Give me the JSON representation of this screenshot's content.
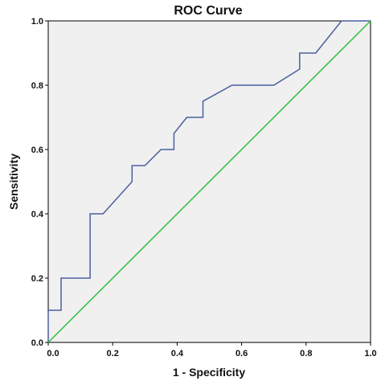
{
  "chart_data": {
    "type": "line",
    "title": "ROC Curve",
    "xlabel": "1 - Specificity",
    "ylabel": "Sensitivity",
    "xlim": [
      0,
      1
    ],
    "ylim": [
      0,
      1
    ],
    "x_ticks": [
      "0.0",
      "0.2",
      "0.4",
      "0.6",
      "0.8",
      "1.0"
    ],
    "y_ticks": [
      "0.0",
      "0.2",
      "0.4",
      "0.6",
      "0.8",
      "1.0"
    ],
    "grid": false,
    "background_color": "#f0f0f0",
    "series": [
      {
        "color": "#4a5f9f",
        "x": [
          0.0,
          0.0,
          0.04,
          0.04,
          0.13,
          0.13,
          0.17,
          0.26,
          0.26,
          0.3,
          0.35,
          0.39,
          0.39,
          0.43,
          0.48,
          0.48,
          0.57,
          0.7,
          0.78,
          0.78,
          0.83,
          0.91,
          1.0
        ],
        "y": [
          0.0,
          0.1,
          0.1,
          0.2,
          0.2,
          0.4,
          0.4,
          0.5,
          0.55,
          0.55,
          0.6,
          0.6,
          0.65,
          0.7,
          0.7,
          0.75,
          0.8,
          0.8,
          0.85,
          0.9,
          0.9,
          1.0,
          1.0
        ]
      },
      {
        "color": "#2fbf3f",
        "x": [
          0,
          1
        ],
        "y": [
          0,
          1
        ]
      }
    ]
  }
}
